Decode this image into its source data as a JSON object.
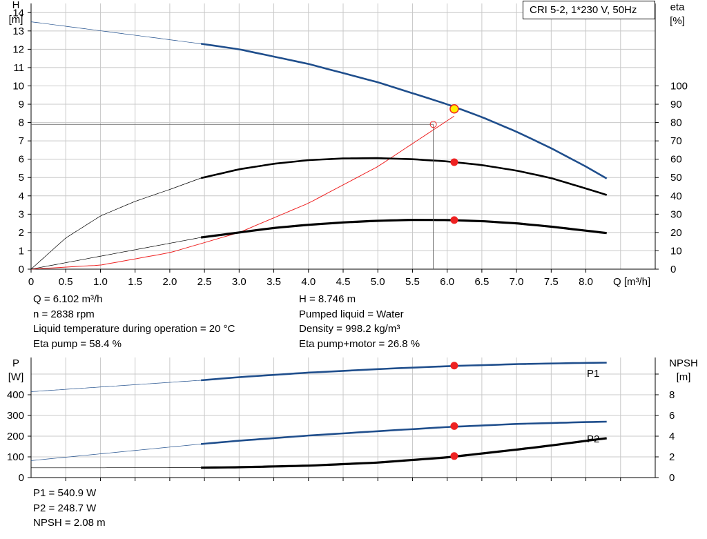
{
  "chart_data": [
    {
      "type": "line",
      "title": "CRI 5-2, 1*230 V, 50Hz",
      "left_axis": {
        "label": "H",
        "unit": "[m]",
        "ylim": [
          0,
          14.5
        ],
        "ticks": [
          0,
          1,
          2,
          3,
          4,
          5,
          6,
          7,
          8,
          9,
          10,
          11,
          12,
          13,
          14
        ]
      },
      "right_axis": {
        "label": "eta",
        "unit": "[%]",
        "ylim": [
          0,
          145
        ],
        "ticks": [
          0,
          10,
          20,
          30,
          40,
          50,
          60,
          70,
          80,
          90,
          100
        ]
      },
      "x_axis": {
        "label": "Q [m³/h]",
        "xlim": [
          0,
          9
        ],
        "ticks": [
          "0",
          "0.5",
          "1.0",
          "1.5",
          "2.0",
          "2.5",
          "3.0",
          "3.5",
          "4.0",
          "4.5",
          "5.0",
          "5.5",
          "6.0",
          "6.5",
          "7.0",
          "7.5",
          "8.0"
        ]
      },
      "grid": true,
      "series": [
        {
          "name": "",
          "axis": "left",
          "color": "#1f4e8c",
          "x": [
            0,
            2.45,
            3.0,
            3.5,
            4.0,
            4.5,
            5.0,
            5.5,
            6.0,
            6.5,
            7.0,
            7.5,
            8.0,
            8.3
          ],
          "y": [
            13.5,
            12.3,
            12.0,
            11.6,
            11.2,
            10.7,
            10.2,
            9.6,
            9.0,
            8.3,
            7.5,
            6.6,
            5.6,
            4.95
          ],
          "thin_until": 2.45
        },
        {
          "name": "",
          "axis": "right",
          "color": "#000000",
          "x": [
            0,
            0.5,
            1.0,
            1.5,
            2.0,
            2.45,
            3.0,
            3.5,
            4.0,
            4.5,
            5.0,
            5.5,
            6.0,
            6.5,
            7.0,
            7.5,
            8.0,
            8.3
          ],
          "y": [
            0,
            17,
            29,
            37,
            43.5,
            49.7,
            54.5,
            57.5,
            59.5,
            60.4,
            60.6,
            60,
            58.8,
            56.8,
            53.8,
            49.7,
            44,
            40.5
          ],
          "thin_until": 2.45
        },
        {
          "name": "",
          "axis": "right",
          "color": "#000000",
          "x": [
            0,
            2.45,
            3.0,
            3.5,
            4.0,
            4.5,
            5.0,
            5.5,
            6.0,
            6.5,
            7.0,
            7.5,
            8.0,
            8.3
          ],
          "y": [
            0,
            17.3,
            20,
            22.5,
            24.2,
            25.5,
            26.4,
            26.9,
            26.8,
            26.2,
            25,
            23.2,
            21,
            19.7
          ],
          "thin_until": 2.45,
          "bold": true
        },
        {
          "name": "",
          "axis": "left",
          "color": "#ee2222",
          "x": [
            0,
            1.0,
            2.0,
            3.0,
            4.0,
            5.0,
            6.1
          ],
          "y": [
            0,
            0.22,
            0.9,
            2.0,
            3.6,
            5.6,
            8.35
          ],
          "thin": true
        }
      ],
      "operating_point": {
        "Q": 6.102,
        "H": 8.746,
        "eta_motor": 58.4,
        "eta_total": 26.8
      },
      "system_marker": {
        "Q": 5.8,
        "H": 7.9
      }
    },
    {
      "type": "line",
      "left_axis": {
        "label": "P",
        "unit": "[W]",
        "ylim": [
          0,
          580
        ],
        "ticks": [
          0,
          100,
          200,
          300,
          400
        ]
      },
      "right_axis": {
        "label": "NPSH",
        "unit": "[m]",
        "ylim": [
          0,
          11.6
        ],
        "ticks": [
          0,
          2,
          4,
          6,
          8
        ]
      },
      "x_axis": {
        "xlim": [
          0,
          9
        ]
      },
      "grid": true,
      "series": [
        {
          "name": "P1",
          "axis": "left",
          "color": "#1f4e8c",
          "x": [
            0,
            2.45,
            3.0,
            4.0,
            5.0,
            6.0,
            7.0,
            8.0,
            8.3
          ],
          "y": [
            415,
            470,
            485,
            507,
            524,
            538,
            548,
            554,
            555
          ],
          "thin_until": 2.45
        },
        {
          "name": "P2",
          "axis": "left",
          "color": "#1f4e8c",
          "x": [
            0,
            2.45,
            3.0,
            4.0,
            5.0,
            6.0,
            7.0,
            8.0,
            8.3
          ],
          "y": [
            82,
            162,
            178,
            203,
            224,
            244,
            259,
            268,
            270
          ],
          "thin_until": 2.45
        },
        {
          "name": "",
          "axis": "right",
          "color": "#000000",
          "x": [
            0,
            1.1,
            2.45,
            3.0,
            4.0,
            5.0,
            6.0,
            7.0,
            7.5,
            8.0,
            8.3
          ],
          "y": [
            0.95,
            0.95,
            0.96,
            1.0,
            1.15,
            1.45,
            1.95,
            2.7,
            3.1,
            3.55,
            3.8
          ],
          "thin_until": 2.45,
          "bold": true
        }
      ],
      "operating_point": {
        "Q": 6.102,
        "P1": 540.9,
        "P2": 248.7,
        "NPSH": 2.08
      }
    }
  ],
  "info_top_left": [
    "Q = 6.102 m³/h",
    "n = 2838 rpm",
    "Liquid temperature during operation = 20 °C",
    "Eta pump = 58.4 %"
  ],
  "info_top_right": [
    "H = 8.746 m",
    "Pumped liquid = Water",
    "Density = 998.2 kg/m³",
    "Eta pump+motor = 26.8 %"
  ],
  "info_bottom_left": [
    "P1 = 540.9 W",
    "P2 = 248.7 W",
    "NPSH = 2.08 m"
  ],
  "colors": {
    "blue": "#1f4e8c",
    "red": "#ee2222",
    "marker_yellow": "#ffee00",
    "grid": "#c8c8c8"
  }
}
